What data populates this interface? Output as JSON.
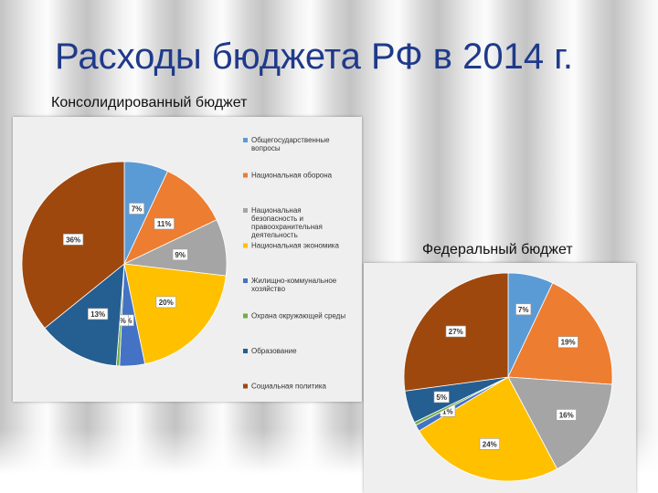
{
  "slide": {
    "title": "Расходы бюджета РФ в 2014 г."
  },
  "chart_data": [
    {
      "type": "pie",
      "title": "Консолидированный бюджет",
      "categories": [
        "Общегосударственные вопросы",
        "Национальная оборона",
        "Национальная безопасность и правоохранительная деятельность",
        "Национальная экономика",
        "Жилищно-коммунальное хозяйство",
        "Охрана окружающей среды",
        "Образование",
        "Социальная политика"
      ],
      "values": [
        7,
        11,
        9,
        20,
        4,
        0.5,
        13,
        36
      ],
      "data_labels": [
        "7%",
        "11%",
        "9%",
        "20%",
        "%",
        "0%",
        "13%",
        "36%"
      ],
      "colors": [
        "#5b9bd5",
        "#ed7d31",
        "#a5a5a5",
        "#ffc000",
        "#4472c4",
        "#70ad47",
        "#255e91",
        "#9e480e"
      ],
      "legend": "right"
    },
    {
      "type": "pie",
      "title": "Федеральный бюджет",
      "categories": [
        "Общегосударственные вопросы",
        "Национальная оборона",
        "Национальная безопасность и правоохранительная деятельность",
        "Национальная экономика",
        "Жилищно-коммунальное хозяйство",
        "Охрана окружающей среды",
        "Образование",
        "Социальная политика"
      ],
      "values": [
        7,
        19,
        16,
        24,
        1,
        0.5,
        5,
        27
      ],
      "data_labels": [
        "7%",
        "19%",
        "16%",
        "24%",
        "1%",
        "",
        "5%",
        "27%"
      ],
      "colors": [
        "#5b9bd5",
        "#ed7d31",
        "#a5a5a5",
        "#ffc000",
        "#4472c4",
        "#70ad47",
        "#255e91",
        "#9e480e"
      ],
      "legend": "none"
    }
  ]
}
